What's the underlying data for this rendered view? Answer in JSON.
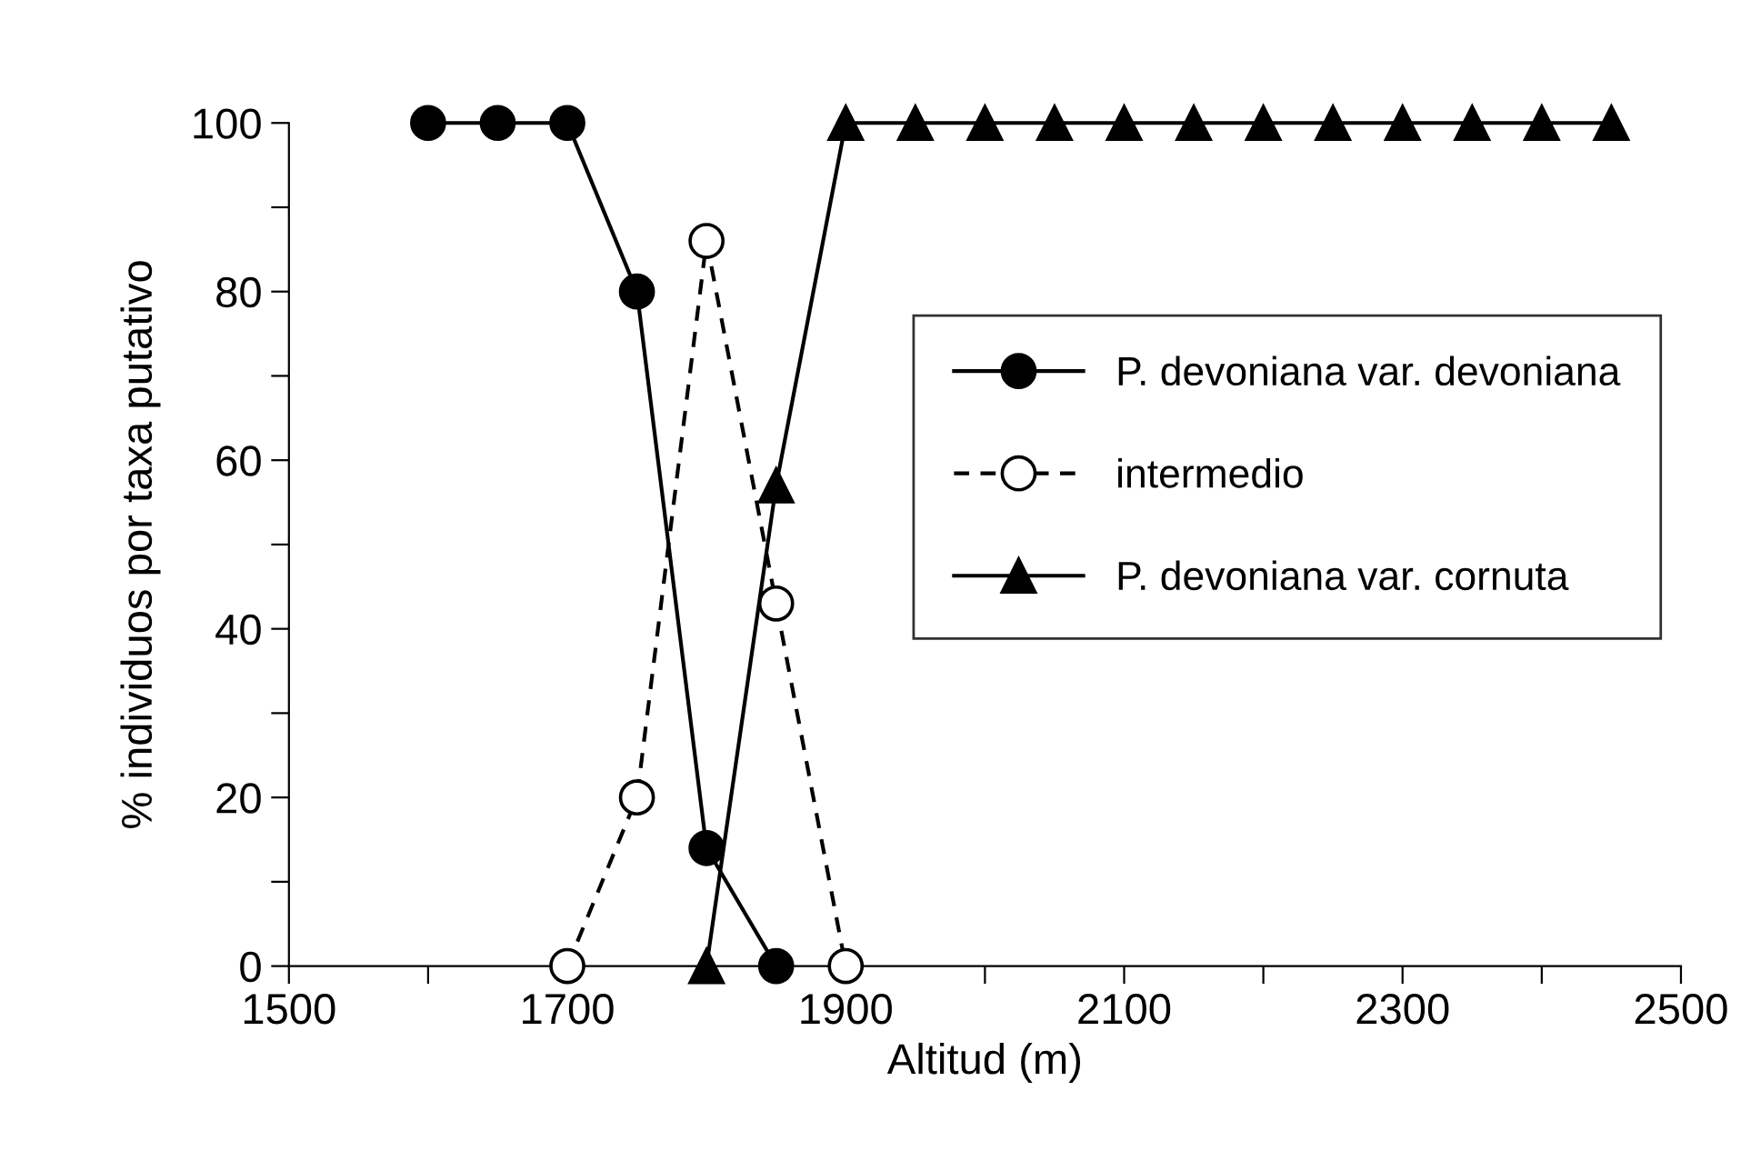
{
  "chart_data": {
    "type": "line",
    "xlabel": "Altitud (m)",
    "ylabel": "% individuos por taxa putativo",
    "series": [
      {
        "name": "P. devoniana var. devoniana",
        "color": "#000000",
        "marker": "circle",
        "line_style": "solid",
        "x": [
          1600,
          1650,
          1700,
          1750,
          1800,
          1850
        ],
        "values": [
          100,
          100,
          100,
          80,
          14,
          0
        ]
      },
      {
        "name": "intermedio",
        "color": "#000000",
        "marker": "circle",
        "line_style": "dashed",
        "x": [
          1700,
          1750,
          1800,
          1850,
          1900
        ],
        "values": [
          0,
          20,
          86,
          43,
          0
        ]
      },
      {
        "name": "P. devoniana var. cornuta",
        "color": "#000000",
        "marker": "triangle",
        "line_style": "solid",
        "x": [
          1800,
          1850,
          1900,
          1950,
          2000,
          2050,
          2100,
          2150,
          2200,
          2250,
          2300,
          2350,
          2400,
          2450
        ],
        "values": [
          0,
          57,
          100,
          100,
          100,
          100,
          100,
          100,
          100,
          100,
          100,
          100,
          100,
          100
        ]
      }
    ],
    "xlim": [
      1500,
      2500
    ],
    "xticks": [
      1500,
      {
        "value": 1600,
        "label": null
      },
      1700,
      {
        "value": 1800,
        "label": null
      },
      1900,
      {
        "value": 2000,
        "label": null
      },
      2100,
      {
        "value": 2200,
        "label": null
      },
      2300,
      {
        "value": 2400,
        "label": null
      },
      2500
    ],
    "ylim": [
      0,
      100
    ],
    "yticks": [
      0,
      {
        "value": 10,
        "label": null
      },
      20,
      {
        "value": 30,
        "label": null
      },
      40,
      {
        "value": 50,
        "label": null
      },
      60,
      {
        "value": 70,
        "label": null
      },
      80,
      {
        "value": 90,
        "label": null
      },
      100
    ],
    "grid": false,
    "legend": "right"
  }
}
